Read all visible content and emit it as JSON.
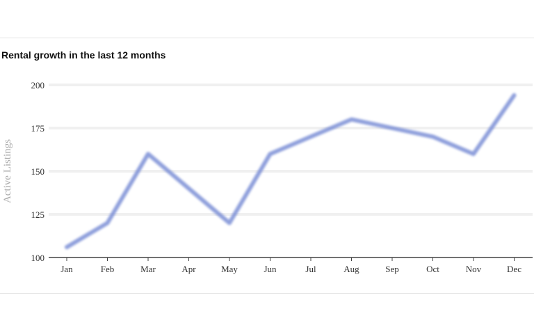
{
  "chart_data": {
    "type": "line",
    "title": "Rental growth in the last 12 months",
    "xlabel": "",
    "ylabel": "Active Listings",
    "categories": [
      "Jan",
      "Feb",
      "Mar",
      "Apr",
      "May",
      "Jun",
      "Jul",
      "Aug",
      "Sep",
      "Oct",
      "Nov",
      "Dec"
    ],
    "values": [
      106,
      120,
      160,
      140,
      120,
      160,
      170,
      180,
      175,
      170,
      160,
      194
    ],
    "yticks": [
      100,
      125,
      150,
      175,
      200
    ],
    "ylim": [
      100,
      200
    ],
    "grid": true,
    "line_color": "#7b8fd6"
  }
}
